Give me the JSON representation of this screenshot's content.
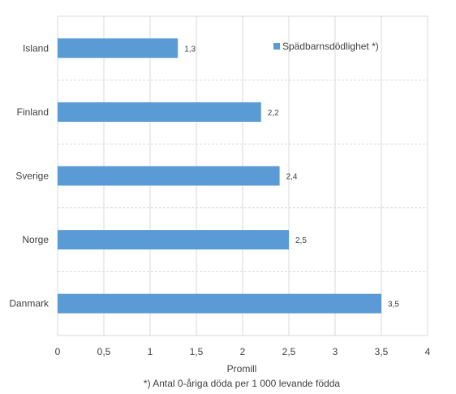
{
  "chart_data": {
    "type": "bar",
    "orientation": "horizontal",
    "categories": [
      "Island",
      "Finland",
      "Sverige",
      "Norge",
      "Danmark"
    ],
    "series": [
      {
        "name": "Spädbarnsdödlighet *)",
        "values": [
          1.3,
          2.2,
          2.4,
          2.5,
          3.5
        ],
        "color": "#5b9bd5"
      }
    ],
    "data_labels": [
      "1,3",
      "2,2",
      "2,4",
      "2,5",
      "3,5"
    ],
    "xlabel": "Promill",
    "ylabel": "",
    "xlim": [
      0,
      4
    ],
    "x_ticks": [
      0,
      0.5,
      1,
      1.5,
      2,
      2.5,
      3,
      3.5,
      4
    ],
    "x_tick_labels": [
      "0",
      "0,5",
      "1",
      "1,5",
      "2",
      "2,5",
      "3",
      "3,5",
      "4"
    ],
    "note": "*) Antal 0-åriga döda per 1 000  levande födda",
    "legend_position": "top-right",
    "grid": true
  }
}
